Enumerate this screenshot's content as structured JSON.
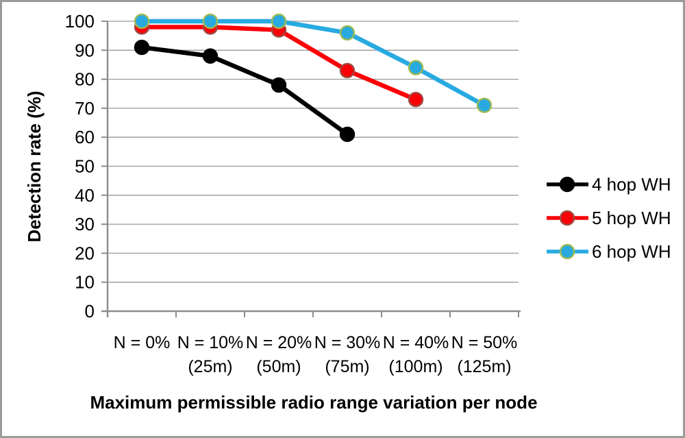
{
  "window": {
    "background": "#ffffff",
    "border_color": "#9B9B9B"
  },
  "chart_data": {
    "type": "line",
    "title": "",
    "ylabel": "Detection rate (%)",
    "xlabel": "Maximum permissible radio range variation per node",
    "ylim": [
      0,
      100
    ],
    "ytick_interval": 10,
    "yticks": [
      100,
      90,
      80,
      70,
      60,
      50,
      40,
      30,
      20,
      10,
      0
    ],
    "grid": "horizontal",
    "gridline_color": "#9A9A9A",
    "axis_color": "#8C8C8C",
    "legend_position": "right-middle",
    "categories": [
      {
        "label": "N = 0%",
        "sub": ""
      },
      {
        "label": "N = 10%",
        "sub": "(25m)"
      },
      {
        "label": "N = 20%",
        "sub": "(50m)"
      },
      {
        "label": "N = 30%",
        "sub": "(75m)"
      },
      {
        "label": "N = 40%",
        "sub": "(100m)"
      },
      {
        "label": "N = 50%",
        "sub": "(125m)"
      }
    ],
    "series": [
      {
        "name": "4 hop WH",
        "line_color": "#000000",
        "marker_fill": "#000000",
        "marker_outline": "#000000",
        "values": [
          91,
          88,
          78,
          61
        ]
      },
      {
        "name": "5 hop WH",
        "line_color": "#FB0007",
        "marker_fill": "#FB0007",
        "marker_outline": "#9E4B44",
        "values": [
          98,
          98,
          97,
          83,
          73
        ]
      },
      {
        "name": "6 hop WH",
        "line_color": "#28AAE1",
        "marker_fill": "#28AAE1",
        "marker_outline": "#9FBB4F",
        "values": [
          100,
          100,
          100,
          96,
          84,
          71
        ]
      }
    ]
  }
}
